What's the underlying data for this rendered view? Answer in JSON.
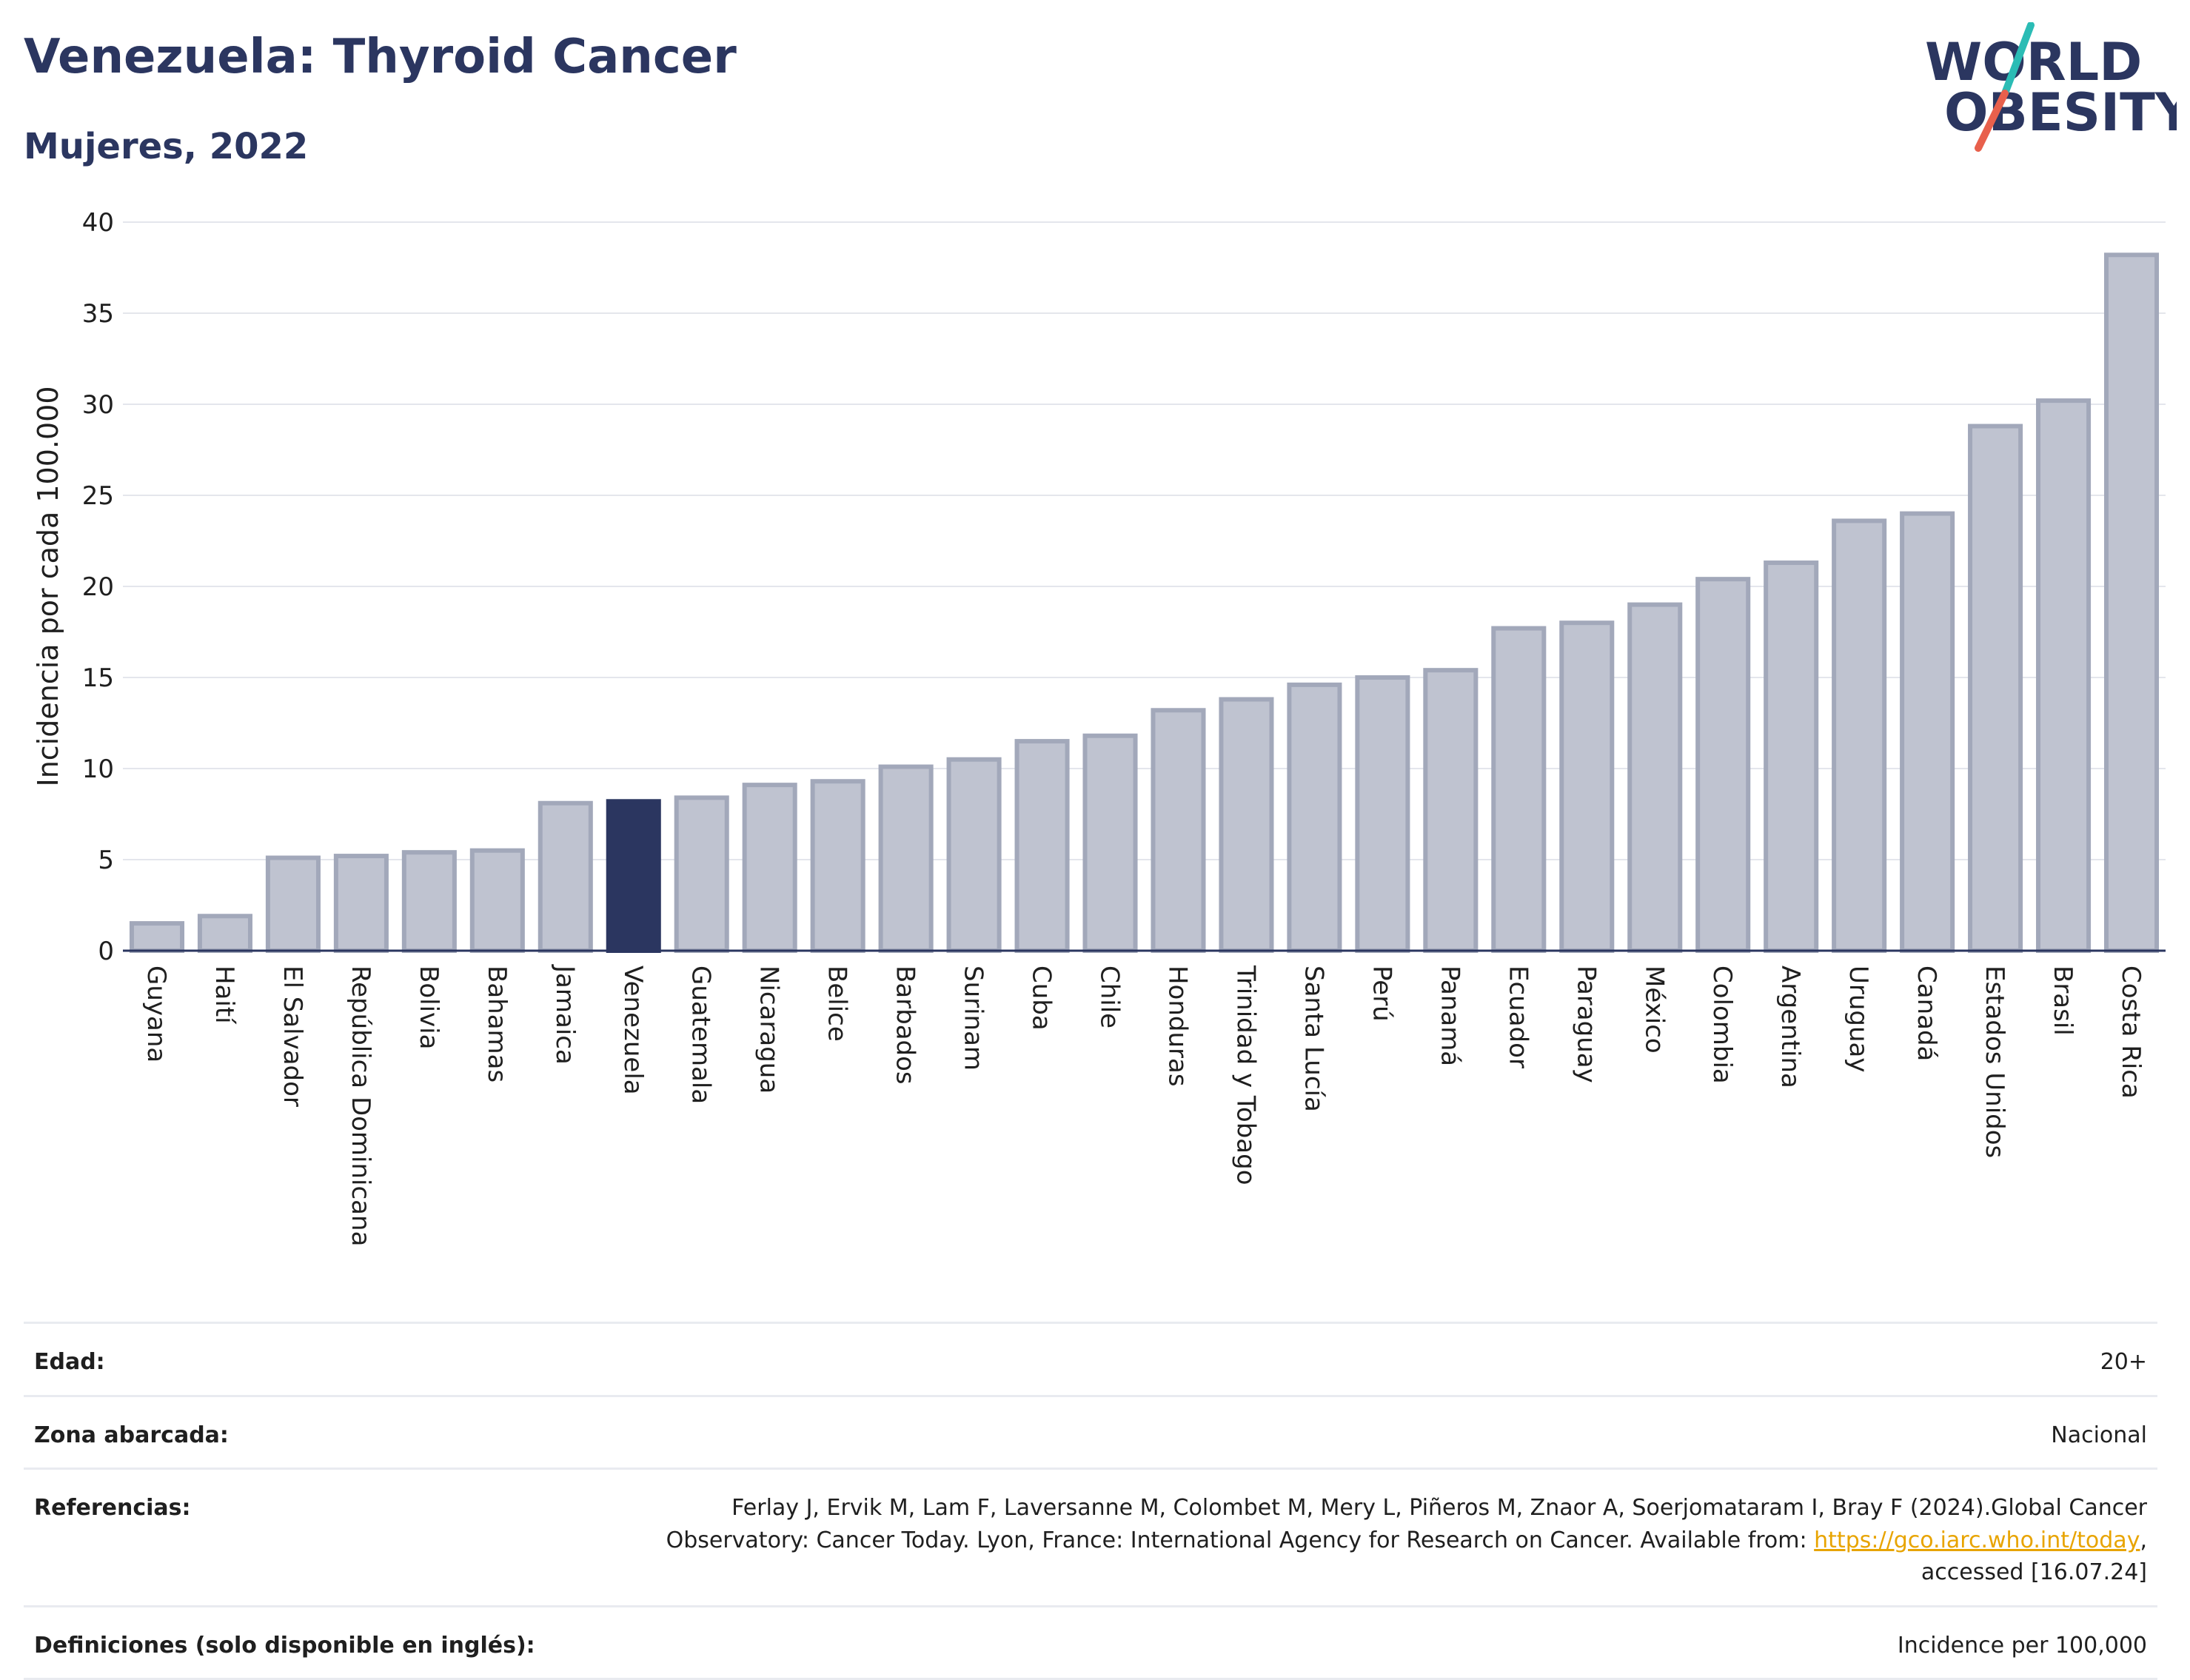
{
  "header": {
    "title": "Venezuela: Thyroid Cancer",
    "subtitle": "Mujeres, 2022"
  },
  "logo": {
    "line1": "WORLD",
    "line2": "OBESITY",
    "colors": {
      "text": "#2b3660",
      "slash_red": "#e8604c",
      "slash_teal": "#2bbcb5"
    }
  },
  "chart_data": {
    "type": "bar",
    "title": "Venezuela: Thyroid Cancer",
    "subtitle": "Mujeres, 2022",
    "xlabel": "",
    "ylabel": "Incidencia por cada 100.000",
    "ylim": [
      0,
      40
    ],
    "yticks": [
      0,
      5,
      10,
      15,
      20,
      25,
      30,
      35,
      40
    ],
    "grid": true,
    "highlight": "Venezuela",
    "colors": {
      "bar": "#bfc3d0",
      "bar_edge": "#a2a8ba",
      "highlight": "#2b3660"
    },
    "categories": [
      "Guyana",
      "Haití",
      "El Salvador",
      "República Dominicana",
      "Bolivia",
      "Bahamas",
      "Jamaica",
      "Venezuela",
      "Guatemala",
      "Nicaragua",
      "Belice",
      "Barbados",
      "Surinam",
      "Cuba",
      "Chile",
      "Honduras",
      "Trinidad y Tobago",
      "Santa Lucía",
      "Perú",
      "Panamá",
      "Ecuador",
      "Paraguay",
      "México",
      "Colombia",
      "Argentina",
      "Uruguay",
      "Canadá",
      "Estados Unidos",
      "Brasil",
      "Costa Rica"
    ],
    "values": [
      1.5,
      1.9,
      5.1,
      5.2,
      5.4,
      5.5,
      8.1,
      8.2,
      8.4,
      9.1,
      9.3,
      10.1,
      10.5,
      11.5,
      11.8,
      13.2,
      13.8,
      14.6,
      15.0,
      15.4,
      17.7,
      18.0,
      19.0,
      20.4,
      21.3,
      23.6,
      24.0,
      28.8,
      30.2,
      38.2
    ]
  },
  "info": {
    "age": {
      "label": "Edad:",
      "value": "20+"
    },
    "zone": {
      "label": "Zona abarcada:",
      "value": "Nacional"
    },
    "refs": {
      "label": "Referencias:",
      "text1": "Ferlay J, Ervik M, Lam F, Laversanne M, Colombet M, Mery L, Piñeros M, Znaor A, Soerjomataram I, Bray F (2024).Global Cancer Observatory: Cancer Today. Lyon, France: International Agency for Research on Cancer. Available from: ",
      "link": "https://gco.iarc.who.int/today",
      "text2": ", accessed [16.07.24]"
    },
    "defs": {
      "label": "Definiciones (solo disponible en inglés):",
      "value": "Incidence per 100,000"
    }
  }
}
